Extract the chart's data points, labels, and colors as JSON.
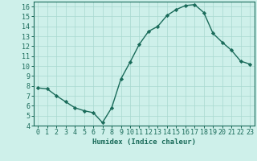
{
  "xlabel": "Humidex (Indice chaleur)",
  "x": [
    0,
    1,
    2,
    3,
    4,
    5,
    6,
    7,
    8,
    9,
    10,
    11,
    12,
    13,
    14,
    15,
    16,
    17,
    18,
    19,
    20,
    21,
    22,
    23
  ],
  "y": [
    7.8,
    7.7,
    7.0,
    6.4,
    5.8,
    5.5,
    5.3,
    4.3,
    5.8,
    8.7,
    10.4,
    12.2,
    13.5,
    14.0,
    15.1,
    15.7,
    16.1,
    16.2,
    15.4,
    13.3,
    12.4,
    11.6,
    10.5,
    10.2
  ],
  "line_color": "#1a6b5a",
  "marker": "D",
  "marker_size": 2.2,
  "bg_color": "#cef0ea",
  "grid_color": "#a8d8d0",
  "ylim": [
    4,
    16.5
  ],
  "xlim": [
    -0.5,
    23.5
  ],
  "yticks": [
    4,
    5,
    6,
    7,
    8,
    9,
    10,
    11,
    12,
    13,
    14,
    15,
    16
  ],
  "xticks": [
    0,
    1,
    2,
    3,
    4,
    5,
    6,
    7,
    8,
    9,
    10,
    11,
    12,
    13,
    14,
    15,
    16,
    17,
    18,
    19,
    20,
    21,
    22,
    23
  ],
  "tick_color": "#1a6b5a",
  "label_fontsize": 6.5,
  "tick_fontsize": 6.0,
  "linewidth": 1.0
}
